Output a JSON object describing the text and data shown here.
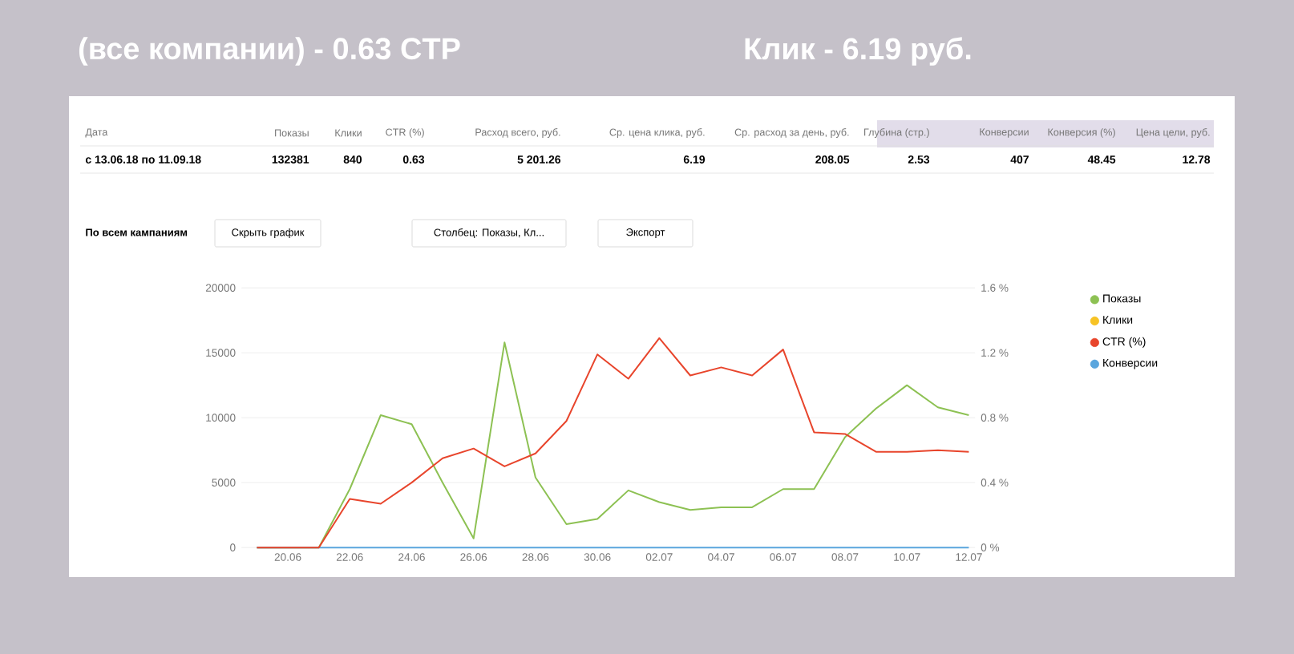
{
  "chart_data": {
    "type": "line",
    "title": "(все компании) - 0.63 CTP",
    "subtitle": "Клик - 6.19 руб.",
    "categories": [
      null,
      "20.06",
      null,
      "22.06",
      null,
      "24.06",
      null,
      "26.06",
      null,
      "28.06",
      null,
      "30.06",
      null,
      "02.07",
      null,
      "04.07",
      null,
      "06.07",
      null,
      "08.07",
      null,
      "10.07",
      null,
      "12.07"
    ],
    "series": [
      {
        "name": "Показы",
        "color": "#8dc153",
        "values": [
          0,
          0,
          0,
          4500,
          10200,
          9500,
          5000,
          700,
          15800,
          5400,
          1800,
          2200,
          4400,
          3500,
          2900,
          3100,
          3100,
          4500,
          4500,
          8500,
          10700,
          12500,
          10800,
          10200
        ]
      },
      {
        "name": "Клики",
        "color": "#f7c325",
        "values": [
          null,
          null,
          null,
          null,
          null,
          null,
          null,
          null,
          null,
          null,
          null,
          null,
          null,
          null,
          null,
          null,
          null,
          null,
          null,
          null,
          null,
          null,
          null,
          null
        ]
      },
      {
        "name": "CTR (%)",
        "color": "#e8452c",
        "axis": "y2",
        "values": [
          0,
          0,
          0,
          0.3,
          0.27,
          0.4,
          0.55,
          0.61,
          0.5,
          0.58,
          0.78,
          1.19,
          1.04,
          1.29,
          1.06,
          1.11,
          1.06,
          1.22,
          0.71,
          0.7,
          0.59,
          0.59,
          0.6,
          0.59
        ]
      },
      {
        "name": "Конверсии",
        "color": "#5aa6de",
        "values": [
          0,
          0,
          0,
          0,
          0,
          0,
          0,
          0,
          0,
          0,
          0,
          0,
          0,
          0,
          0,
          0,
          0,
          0,
          0,
          0,
          0,
          0,
          0,
          0
        ]
      }
    ],
    "ylim": [
      0,
      20000
    ],
    "yticks": [
      0,
      5000,
      10000,
      15000,
      20000
    ],
    "y2lim": [
      0,
      1.6
    ],
    "y2ticks": [
      {
        "value": 0,
        "label": "0 %"
      },
      {
        "value": 0.4,
        "label": "0.4 %"
      },
      {
        "value": 0.8,
        "label": "0.8 %"
      },
      {
        "value": 1.2,
        "label": "1.2 %"
      },
      {
        "value": 1.6,
        "label": "1.6 %"
      }
    ],
    "grid": "y",
    "legend": "top right",
    "annotations": [
      "Дата",
      "Показы",
      "Клики",
      "CTR (%)",
      "Расход всего, руб.",
      "Ср. цена клика, руб.",
      "Ср. расход за день, руб.",
      "Глубина (стр.)",
      "Конверсии",
      "Конверсия (%)",
      "Цена цели, руб.",
      "с 13.06.18 по 11.09.18",
      "132381",
      "840",
      "0.63",
      "5 201.26",
      "6.19",
      "208.05",
      "2.53",
      "407",
      "48.45",
      "12.78",
      "По всем кампаниям",
      "Скрыть график",
      "Столбец: Показы, Кл...",
      "Экспорт"
    ]
  }
}
